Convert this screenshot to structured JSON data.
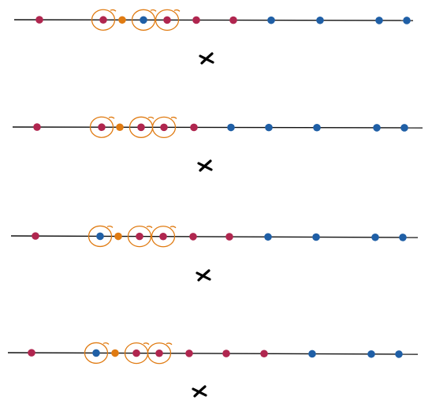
{
  "colors": {
    "red": "#b0264f",
    "blue": "#1f5fa6",
    "orange": "#e07b12",
    "line": "#111111",
    "mark": "#000000"
  },
  "icon_name": "x-mark-icon",
  "rows": [
    {
      "points": [
        "red",
        "red",
        "orange",
        "blue",
        "red",
        "red",
        "red",
        "blue",
        "blue",
        "blue",
        "blue"
      ],
      "circled": [
        1,
        3,
        4
      ]
    },
    {
      "points": [
        "red",
        "red",
        "orange",
        "red",
        "red",
        "red",
        "blue",
        "blue",
        "blue",
        "blue",
        "blue"
      ],
      "circled": [
        1,
        3,
        4
      ]
    },
    {
      "points": [
        "red",
        "blue",
        "orange",
        "red",
        "red",
        "red",
        "red",
        "blue",
        "blue",
        "blue",
        "blue"
      ],
      "circled": [
        1,
        3,
        4
      ]
    },
    {
      "points": [
        "red",
        "blue",
        "orange",
        "red",
        "red",
        "red",
        "red",
        "red",
        "blue",
        "blue",
        "blue"
      ],
      "circled": [
        1,
        3,
        4
      ]
    }
  ]
}
